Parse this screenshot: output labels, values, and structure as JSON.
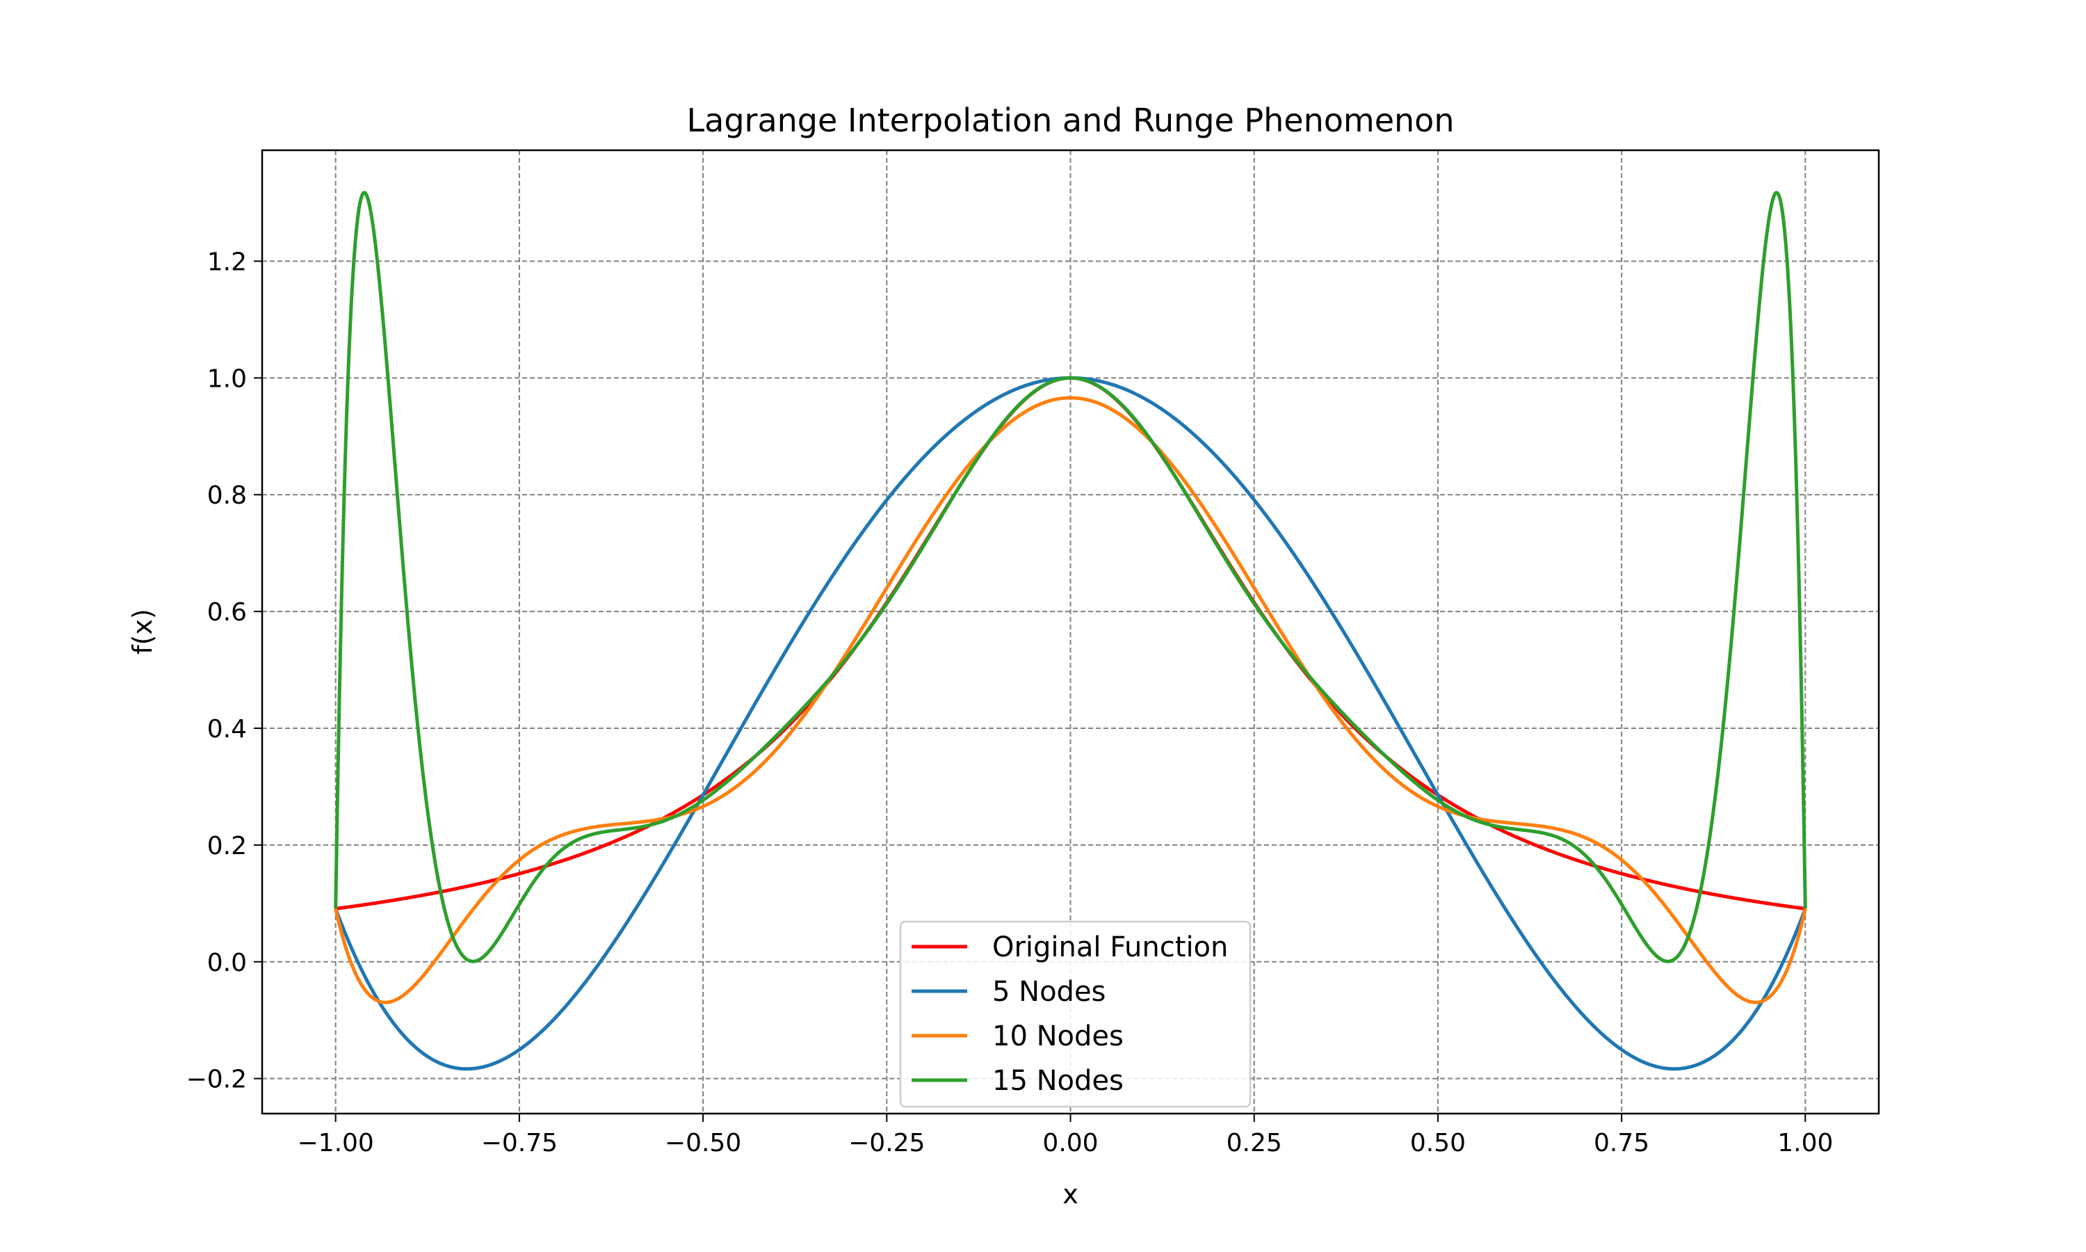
{
  "chart_data": {
    "type": "line",
    "title": "Lagrange Interpolation and Runge Phenomenon",
    "xlabel": "x",
    "ylabel": "f(x)",
    "xlim": [
      -1.1,
      1.1
    ],
    "ylim": [
      -0.26,
      1.39
    ],
    "xticks": [
      -1.0,
      -0.75,
      -0.5,
      -0.25,
      0.0,
      0.25,
      0.5,
      0.75,
      1.0
    ],
    "xtick_labels": [
      "−1.00",
      "−0.75",
      "−0.50",
      "−0.25",
      "0.00",
      "0.25",
      "0.50",
      "0.75",
      "1.00"
    ],
    "yticks": [
      -0.2,
      0.0,
      0.2,
      0.4,
      0.6,
      0.8,
      1.0,
      1.2
    ],
    "ytick_labels": [
      "−0.2",
      "0.0",
      "0.2",
      "0.4",
      "0.6",
      "0.8",
      "1.0",
      "1.2"
    ],
    "grid": true,
    "legend_position": "bottom-center",
    "x_domain": [
      -1,
      1
    ],
    "series": [
      {
        "name": "Original Function",
        "color": "#ff0000",
        "function": "1/(1+10x^2)"
      },
      {
        "name": "5 Nodes",
        "color": "#1f77b4",
        "nodes": 5,
        "node_spacing": "equispaced on [-1, 1]"
      },
      {
        "name": "10 Nodes",
        "color": "#ff7f0e",
        "nodes": 10,
        "node_spacing": "equispaced on [-1, 1]"
      },
      {
        "name": "15 Nodes",
        "color": "#2ca02c",
        "nodes": 15,
        "node_spacing": "equispaced on [-1, 1]"
      }
    ]
  }
}
